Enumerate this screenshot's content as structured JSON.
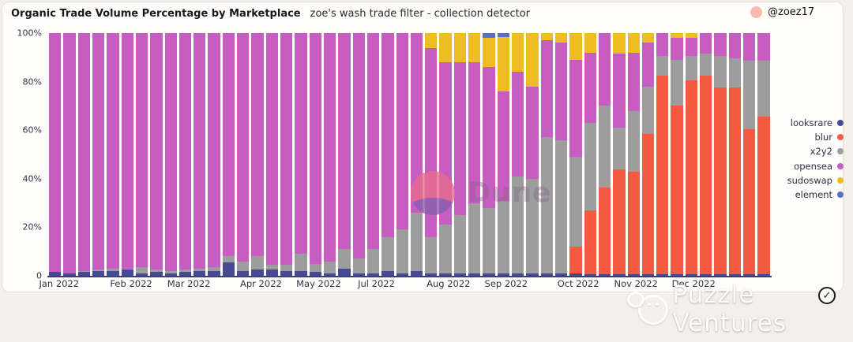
{
  "header": {
    "title": "Organic Trade Volume Percentage by Marketplace",
    "subtitle": "zoe's wash trade filter - collection detector",
    "author": "@zoez17"
  },
  "watermarks": {
    "dune": "Dune",
    "partner": "Puzzle Ventures",
    "verified_check": "✓"
  },
  "colors": {
    "looksrare": "#474995",
    "blur": "#f25b3f",
    "x2y2": "#9d9d9d",
    "opensea": "#c75dc0",
    "sudoswap": "#eebc23",
    "element": "#5671c2",
    "axis_line": "#3d3f72",
    "card_bg": "#fffefc",
    "page_bg": "#f3efe9"
  },
  "legend": [
    {
      "label": "looksrare",
      "color": "#474995"
    },
    {
      "label": "blur",
      "color": "#f25b3f"
    },
    {
      "label": "x2y2",
      "color": "#9d9d9d"
    },
    {
      "label": "opensea",
      "color": "#c75dc0"
    },
    {
      "label": "sudoswap",
      "color": "#eebc23"
    },
    {
      "label": "element",
      "color": "#5671c2"
    }
  ],
  "chart_data": {
    "type": "bar",
    "stacked": true,
    "units": "percent",
    "title": "Organic Trade Volume Percentage by Marketplace",
    "xlabel": "",
    "ylabel": "",
    "ylim": [
      0,
      100
    ],
    "grid": false,
    "legend_position": "right",
    "yticks": [
      {
        "value": 100,
        "label": "100%"
      },
      {
        "value": 80,
        "label": "80%"
      },
      {
        "value": 60,
        "label": "60%"
      },
      {
        "value": 40,
        "label": "40%"
      },
      {
        "value": 20,
        "label": "20%"
      },
      {
        "value": 0,
        "label": "0"
      }
    ],
    "num_bars": 50,
    "x_axis_labels": [
      {
        "index": 0,
        "label": "Jan 2022"
      },
      {
        "index": 5,
        "label": "Feb 2022"
      },
      {
        "index": 9,
        "label": "Mar 2022"
      },
      {
        "index": 14,
        "label": "Apr 2022"
      },
      {
        "index": 18,
        "label": "May 2022"
      },
      {
        "index": 22,
        "label": "Jul 2022"
      },
      {
        "index": 27,
        "label": "Aug 2022"
      },
      {
        "index": 31,
        "label": "Sep 2022"
      },
      {
        "index": 36,
        "label": "Oct 2022"
      },
      {
        "index": 40,
        "label": "Nov 2022"
      },
      {
        "index": 44,
        "label": "Dec 2022"
      }
    ],
    "series": [
      {
        "name": "looksrare",
        "color": "#474995",
        "values": [
          1.5,
          1,
          1.5,
          2,
          2,
          2.5,
          1,
          1.5,
          1,
          1.5,
          2,
          2,
          5.5,
          2,
          2.5,
          2.5,
          2,
          2,
          1.5,
          1,
          3,
          1,
          1,
          2,
          1,
          2,
          1,
          1,
          1,
          1,
          1,
          1,
          1,
          1,
          1,
          1,
          1,
          0.5,
          0.5,
          0.5,
          0.5,
          0.5,
          0.5,
          0.5,
          0.5,
          0.5,
          0.5,
          0.5,
          0.5,
          0.5
        ]
      },
      {
        "name": "blur",
        "color": "#f25b3f",
        "values": [
          0,
          0,
          0,
          0,
          0,
          0,
          0,
          0,
          0,
          0,
          0,
          0,
          0,
          0,
          0,
          0,
          0,
          0,
          0,
          0,
          0,
          0,
          0,
          0,
          0,
          0,
          0,
          0,
          0,
          0,
          0,
          0,
          0,
          0,
          0,
          0,
          11,
          26.5,
          36,
          43.5,
          42.5,
          58,
          82,
          69.5,
          80,
          82,
          77,
          77,
          60,
          65
        ]
      },
      {
        "name": "x2y2",
        "color": "#9d9d9d",
        "values": [
          0,
          0,
          0.5,
          0.5,
          1,
          0.5,
          2.5,
          1,
          1,
          1,
          1,
          1.5,
          2.5,
          4,
          5.5,
          2,
          2.5,
          7,
          3.5,
          5,
          8,
          6,
          10,
          14,
          18,
          24,
          15,
          20,
          24,
          29,
          27,
          30,
          40,
          39,
          56,
          55,
          37,
          36,
          33.5,
          17,
          25,
          19.5,
          8,
          19,
          10,
          9,
          13,
          12,
          28,
          23
        ]
      },
      {
        "name": "opensea",
        "color": "#c75dc0",
        "values": [
          98.5,
          99,
          98,
          97.5,
          97,
          97,
          96.5,
          97.5,
          98,
          97.5,
          97,
          96.5,
          92,
          94,
          92,
          95.5,
          95.5,
          91,
          95,
          94,
          89,
          93,
          89,
          84,
          81,
          74,
          78,
          67,
          63,
          58,
          58,
          45,
          43,
          38,
          40,
          40,
          40,
          29,
          30,
          30.5,
          24,
          18,
          9.5,
          9,
          7.5,
          8.5,
          9.5,
          10.5,
          11.5,
          11.5
        ]
      },
      {
        "name": "sudoswap",
        "color": "#eebc23",
        "values": [
          0,
          0,
          0,
          0,
          0,
          0,
          0,
          0,
          0,
          0,
          0,
          0,
          0,
          0,
          0,
          0,
          0,
          0,
          0,
          0,
          0,
          0,
          0,
          0,
          0,
          0,
          6,
          12,
          12,
          12,
          12,
          22.5,
          16,
          22,
          3,
          4,
          11,
          8,
          0,
          8.5,
          8,
          4,
          0,
          2,
          2,
          0,
          0,
          0,
          0,
          0
        ]
      },
      {
        "name": "element",
        "color": "#5671c2",
        "values": [
          0,
          0,
          0,
          0,
          0,
          0,
          0,
          0,
          0,
          0,
          0,
          0,
          0,
          0,
          0,
          0,
          0,
          0,
          0,
          0,
          0,
          0,
          0,
          0,
          0,
          0,
          0,
          0,
          0,
          0,
          2,
          1.5,
          0,
          0,
          0,
          0,
          0,
          0,
          0,
          0,
          0,
          0,
          0,
          0,
          0,
          0,
          0,
          0,
          0,
          0
        ]
      }
    ]
  }
}
